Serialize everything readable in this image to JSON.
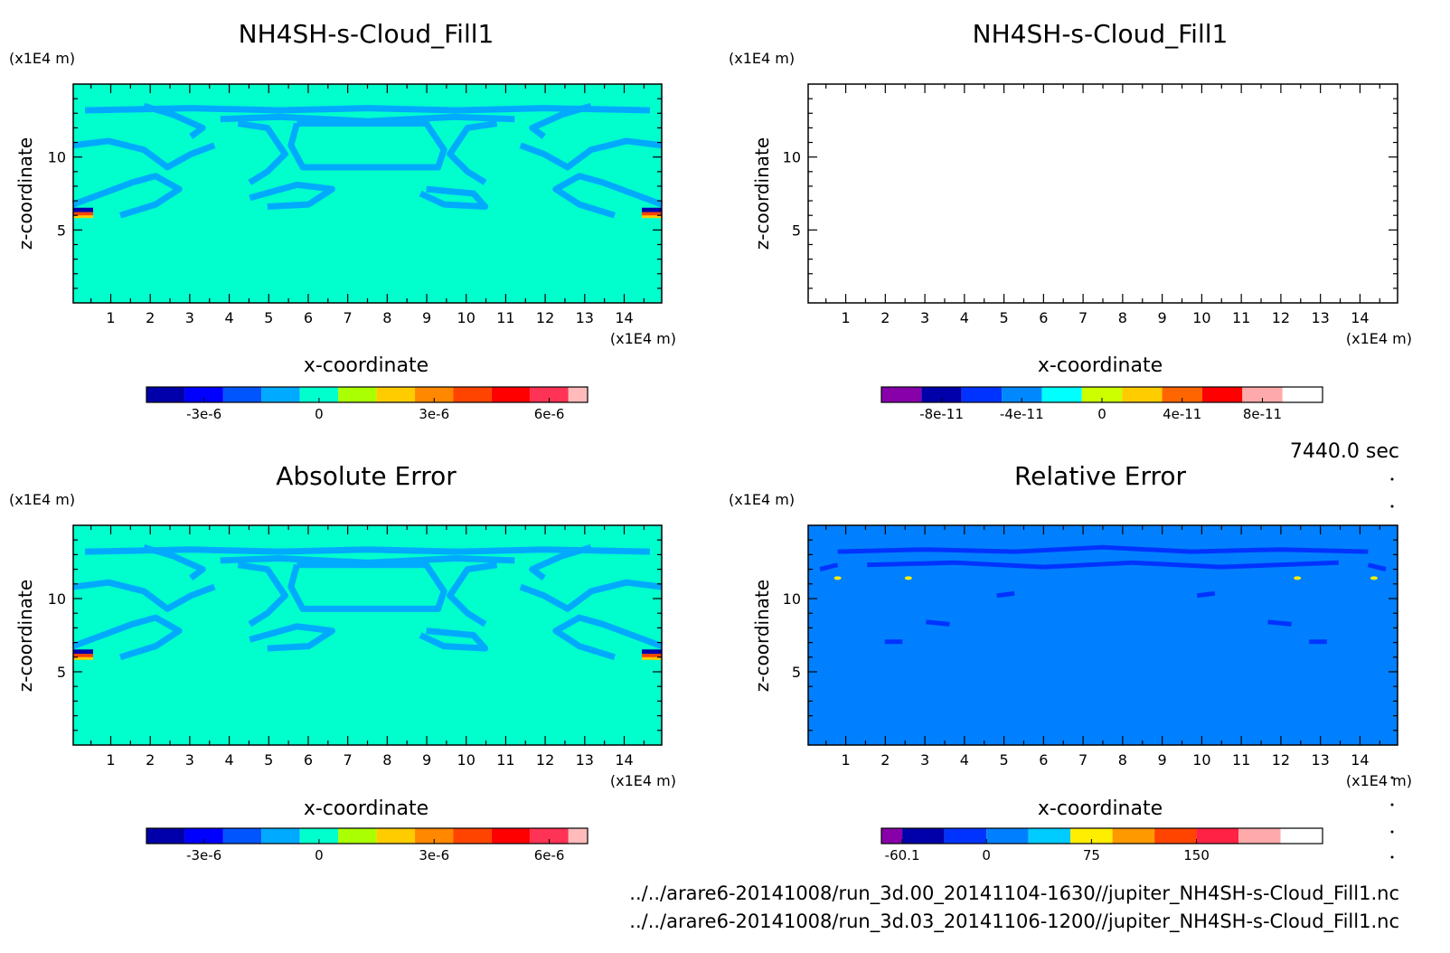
{
  "time_label": "7440.0 sec",
  "files": [
    "../../arare6-20141008/run_3d.00_20141104-1630//jupiter_NH4SH-s-Cloud_Fill1.nc",
    "../../arare6-20141008/run_3d.03_20141106-1200//jupiter_NH4SH-s-Cloud_Fill1.nc"
  ],
  "colors": {
    "cyan_field": "#00ffcc",
    "blue_contour": "#00aaff",
    "rel_bg": "#0080ff",
    "rel_contour": "#0033ff"
  },
  "chart_data": [
    {
      "type": "heatmap",
      "title": "NH4SH-s-Cloud_Fill1",
      "xlabel": "x-coordinate",
      "ylabel": "z-coordinate",
      "x_unit": "(x1E4 m)",
      "z_unit": "(x1E4 m)",
      "xlim": [
        0.05,
        14.95
      ],
      "zlim": [
        0,
        15
      ],
      "x_ticks": [
        1,
        2,
        3,
        4,
        5,
        6,
        7,
        8,
        9,
        10,
        11,
        12,
        13,
        14
      ],
      "z_ticks": [
        5,
        10
      ],
      "colorbar": {
        "levels": [
          -4.5e-06,
          -3.5e-06,
          -2.5e-06,
          -1.5e-06,
          -5e-07,
          5e-07,
          1.5e-06,
          2.5e-06,
          3.5e-06,
          4.5e-06,
          5.5e-06,
          6.5e-06,
          7e-06
        ],
        "colors": [
          "#0000aa",
          "#0000ff",
          "#0055ff",
          "#00aaff",
          "#00ffcc",
          "#aaff00",
          "#ffcc00",
          "#ff8800",
          "#ff4400",
          "#ff0000",
          "#ff3355",
          "#ffbbbb"
        ],
        "tick_labels": [
          "-3e-6",
          "0",
          "3e-6",
          "6e-6"
        ],
        "tick_values": [
          -3e-06,
          0,
          3e-06,
          6e-06
        ]
      },
      "field": "cloud"
    },
    {
      "type": "heatmap",
      "title": "NH4SH-s-Cloud_Fill1",
      "xlabel": "x-coordinate",
      "ylabel": "z-coordinate",
      "x_unit": "(x1E4 m)",
      "z_unit": "(x1E4 m)",
      "xlim": [
        0.05,
        14.95
      ],
      "zlim": [
        0,
        15
      ],
      "x_ticks": [
        1,
        2,
        3,
        4,
        5,
        6,
        7,
        8,
        9,
        10,
        11,
        12,
        13,
        14
      ],
      "z_ticks": [
        5,
        10
      ],
      "colorbar": {
        "levels": [
          -1.1e-10,
          -9e-11,
          -7e-11,
          -5e-11,
          -3e-11,
          -1e-11,
          1e-11,
          3e-11,
          5e-11,
          7e-11,
          9e-11,
          1.1e-10
        ],
        "colors": [
          "#8800aa",
          "#0000aa",
          "#0033ff",
          "#0088ff",
          "#00ffff",
          "#ccff00",
          "#ffcc00",
          "#ff6600",
          "#ff0000",
          "#ffaaaa"
        ],
        "tick_labels": [
          "-8e-11",
          "-4e-11",
          "0",
          "4e-11",
          "8e-11"
        ],
        "tick_values": [
          -8e-11,
          -4e-11,
          0,
          4e-11,
          8e-11
        ]
      },
      "field": "empty"
    },
    {
      "type": "heatmap",
      "title": "Absolute Error",
      "xlabel": "x-coordinate",
      "ylabel": "z-coordinate",
      "x_unit": "(x1E4 m)",
      "z_unit": "(x1E4 m)",
      "xlim": [
        0.05,
        14.95
      ],
      "zlim": [
        0,
        15
      ],
      "x_ticks": [
        1,
        2,
        3,
        4,
        5,
        6,
        7,
        8,
        9,
        10,
        11,
        12,
        13,
        14
      ],
      "z_ticks": [
        5,
        10
      ],
      "colorbar": {
        "levels": [
          -4.5e-06,
          -3.5e-06,
          -2.5e-06,
          -1.5e-06,
          -5e-07,
          5e-07,
          1.5e-06,
          2.5e-06,
          3.5e-06,
          4.5e-06,
          5.5e-06,
          6.5e-06,
          7e-06
        ],
        "colors": [
          "#0000aa",
          "#0000ff",
          "#0055ff",
          "#00aaff",
          "#00ffcc",
          "#aaff00",
          "#ffcc00",
          "#ff8800",
          "#ff4400",
          "#ff0000",
          "#ff3355",
          "#ffbbbb"
        ],
        "tick_labels": [
          "-3e-6",
          "0",
          "3e-6",
          "6e-6"
        ],
        "tick_values": [
          -3e-06,
          0,
          3e-06,
          6e-06
        ]
      },
      "field": "cloud"
    },
    {
      "type": "heatmap",
      "title": "Relative Error",
      "xlabel": "x-coordinate",
      "ylabel": "z-coordinate",
      "x_unit": "(x1E4 m)",
      "z_unit": "(x1E4 m)",
      "xlim": [
        0.05,
        14.95
      ],
      "zlim": [
        0,
        15
      ],
      "x_ticks": [
        1,
        2,
        3,
        4,
        5,
        6,
        7,
        8,
        9,
        10,
        11,
        12,
        13,
        14
      ],
      "z_ticks": [
        5,
        10
      ],
      "colorbar": {
        "levels": [
          -75,
          -60.1,
          -30,
          0,
          30,
          60,
          90,
          120,
          150,
          180,
          210,
          240
        ],
        "colors": [
          "#8800aa",
          "#0000aa",
          "#0033ff",
          "#0080ff",
          "#00ccff",
          "#ffee00",
          "#ff9900",
          "#ff4400",
          "#ff2244",
          "#ffaaaa"
        ],
        "tick_labels": [
          "-60.1",
          "0",
          "75",
          "150"
        ],
        "tick_values": [
          -60.1,
          0,
          75,
          150
        ]
      },
      "field": "relative"
    }
  ]
}
